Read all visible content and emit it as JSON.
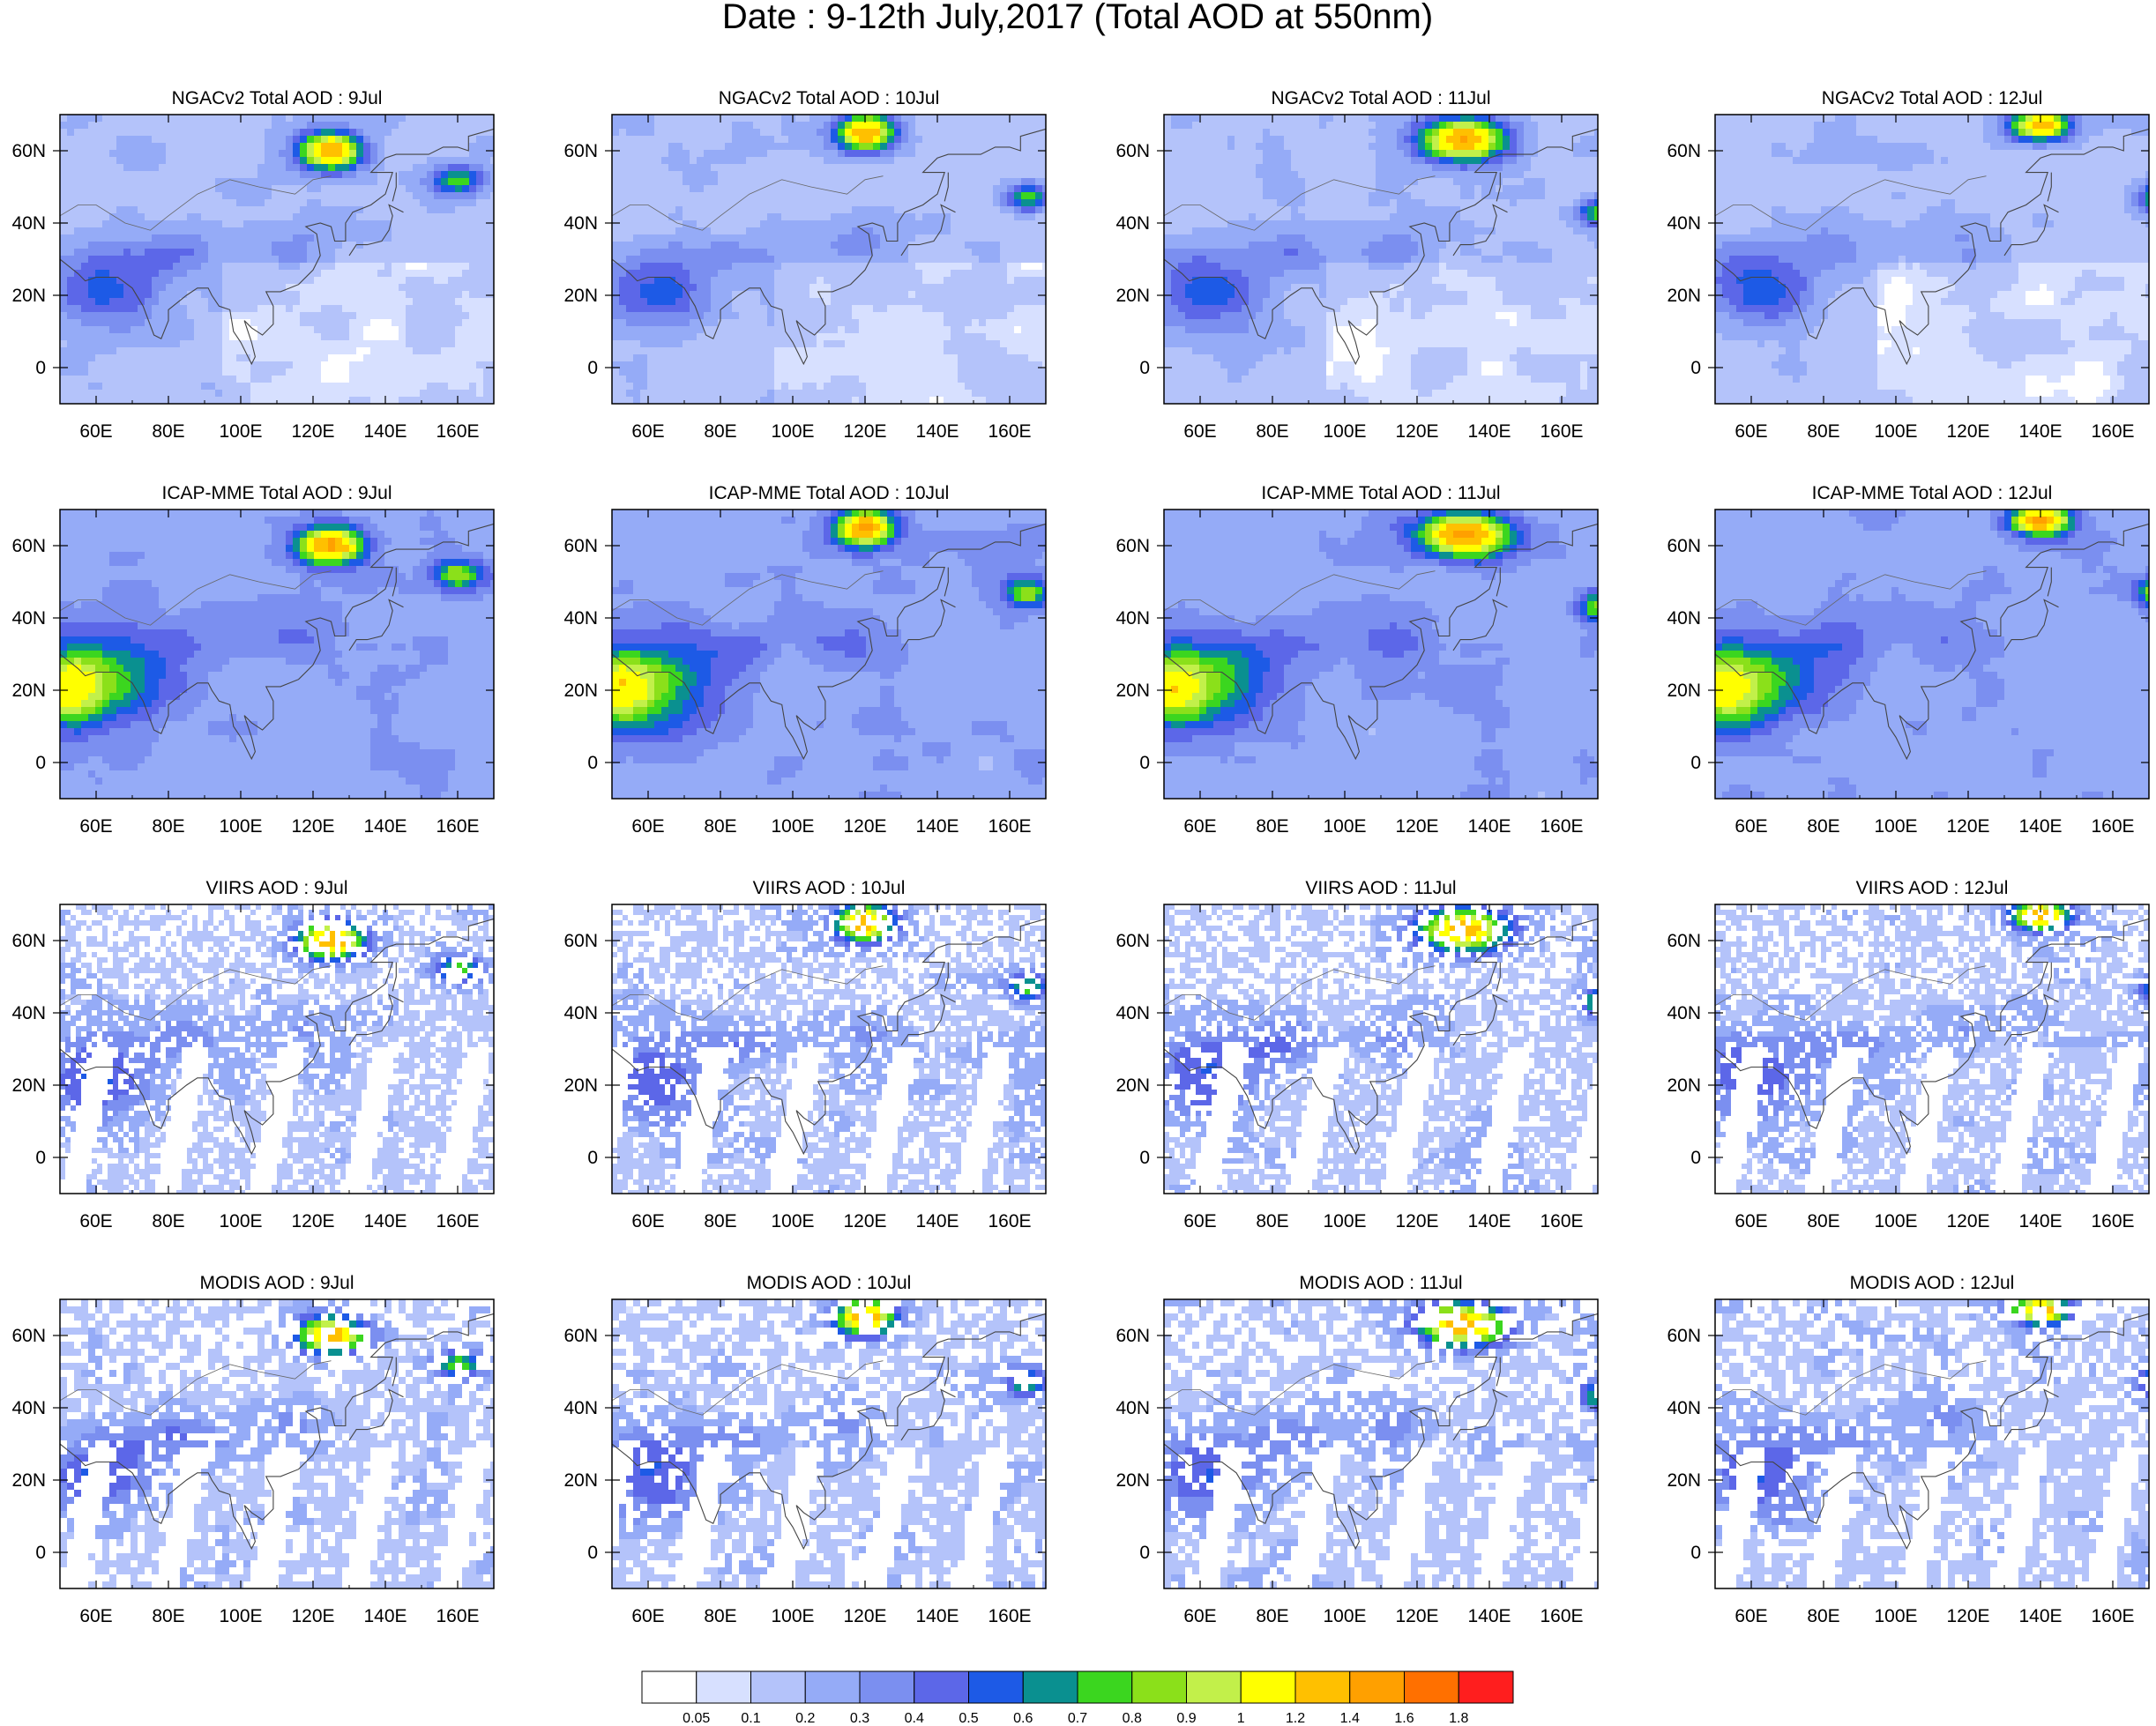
{
  "figure_title": "Date : 9-12th July,2017 (Total AOD at 550nm)",
  "chart_data": {
    "type": "heatmap",
    "title": "Date : 9-12th July,2017 (Total AOD at 550nm)",
    "grid": false,
    "x_ticks": [
      "60E",
      "80E",
      "100E",
      "120E",
      "140E",
      "160E"
    ],
    "x_tick_values": [
      60,
      80,
      100,
      120,
      140,
      160
    ],
    "y_ticks": [
      "60N",
      "40N",
      "20N",
      "0"
    ],
    "y_tick_values": [
      60,
      40,
      20,
      0
    ],
    "xlim": [
      50,
      170
    ],
    "ylim": [
      -10,
      70
    ],
    "panels": [
      {
        "title": "NGACv2 Total AOD : 9Jul",
        "source": "NGACv2",
        "day": "9Jul"
      },
      {
        "title": "NGACv2 Total AOD : 10Jul",
        "source": "NGACv2",
        "day": "10Jul"
      },
      {
        "title": "NGACv2 Total AOD : 11Jul",
        "source": "NGACv2",
        "day": "11Jul"
      },
      {
        "title": "NGACv2 Total AOD : 12Jul",
        "source": "NGACv2",
        "day": "12Jul"
      },
      {
        "title": "ICAP-MME Total AOD : 9Jul",
        "source": "ICAP-MME",
        "day": "9Jul"
      },
      {
        "title": "ICAP-MME Total AOD : 10Jul",
        "source": "ICAP-MME",
        "day": "10Jul"
      },
      {
        "title": "ICAP-MME Total AOD : 11Jul",
        "source": "ICAP-MME",
        "day": "11Jul"
      },
      {
        "title": "ICAP-MME Total AOD : 12Jul",
        "source": "ICAP-MME",
        "day": "12Jul"
      },
      {
        "title": "VIIRS AOD : 9Jul",
        "source": "VIIRS",
        "day": "9Jul"
      },
      {
        "title": "VIIRS AOD : 10Jul",
        "source": "VIIRS",
        "day": "10Jul"
      },
      {
        "title": "VIIRS AOD : 11Jul",
        "source": "VIIRS",
        "day": "11Jul"
      },
      {
        "title": "VIIRS AOD : 12Jul",
        "source": "VIIRS",
        "day": "12Jul"
      },
      {
        "title": "MODIS AOD : 9Jul",
        "source": "MODIS",
        "day": "9Jul"
      },
      {
        "title": "MODIS AOD : 10Jul",
        "source": "MODIS",
        "day": "10Jul"
      },
      {
        "title": "MODIS AOD : 11Jul",
        "source": "MODIS",
        "day": "11Jul"
      },
      {
        "title": "MODIS AOD : 12Jul",
        "source": "MODIS",
        "day": "12Jul"
      }
    ],
    "colorbar": {
      "levels": [
        "0.05",
        "0.1",
        "0.2",
        "0.3",
        "0.4",
        "0.5",
        "0.6",
        "0.7",
        "0.8",
        "0.9",
        "1",
        "1.2",
        "1.4",
        "1.6",
        "1.8"
      ],
      "colors": [
        "#ffffff",
        "#d7e0ff",
        "#b4c3fa",
        "#95abf7",
        "#7b8ff0",
        "#5c67e8",
        "#1d5ae6",
        "#0a9090",
        "#3bd61f",
        "#8be01a",
        "#c2f04a",
        "#ffff00",
        "#ffc000",
        "#ffa000",
        "#ff7000",
        "#ff1e1e"
      ]
    }
  }
}
